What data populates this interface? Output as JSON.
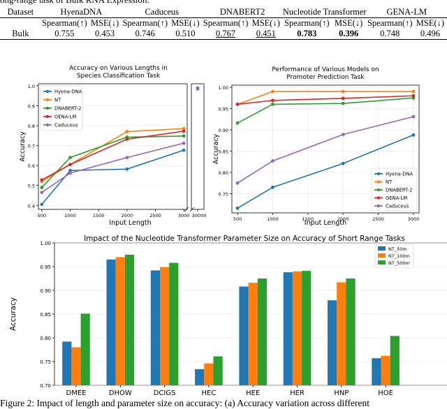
{
  "top_caption": "ong-range task of Bulk RNA Expression.",
  "table": {
    "dataset_header": "Dataset",
    "models": [
      "HyenaDNA",
      "Caduceus",
      "DNABERT2",
      "Nucleotide Transformer",
      "GENA-LM"
    ],
    "metric_spearman": "Spearman(↑)",
    "metric_mse": "MSE(↓)",
    "row_label": "Bulk",
    "values": [
      "0.755",
      "0.453",
      "0.746",
      "0.510",
      "0.767",
      "0.451",
      "0.783",
      "0.396",
      "0.748",
      "0.496"
    ]
  },
  "chart_data": [
    {
      "type": "line",
      "title": "Accuracy on Various Lengths in\nSpecies Classification Task",
      "title_line1": "Accuracy on Various Lengths in",
      "title_line2": "Species Classification Task",
      "xlabel": "Input Length",
      "ylabel": "Accuracy",
      "x_ticks": [
        "500",
        "1000",
        "1500",
        "2000",
        "2500",
        "3000"
      ],
      "x_break_tick": "30000",
      "y_ticks": [
        "0.4",
        "0.5",
        "0.6",
        "0.7",
        "0.8",
        "0.9",
        "1.0"
      ],
      "ylim": [
        0.38,
        1.01
      ],
      "x": [
        500,
        1000,
        2000,
        3000
      ],
      "legend": "top-left",
      "series": [
        {
          "name": "Hyena-DNA",
          "color": "#1f77b4",
          "values": [
            0.405,
            0.575,
            0.582,
            0.677
          ],
          "extra": 0.988
        },
        {
          "name": "NT",
          "color": "#ff7f0e",
          "values": [
            0.52,
            0.605,
            0.77,
            0.785
          ]
        },
        {
          "name": "DNABERT-2",
          "color": "#2ca02c",
          "values": [
            0.49,
            0.64,
            0.742,
            0.748
          ]
        },
        {
          "name": "GENA-LM",
          "color": "#d62728",
          "values": [
            0.528,
            0.605,
            0.732,
            0.772
          ]
        },
        {
          "name": "Caduceus",
          "color": "#9467bd",
          "values": [
            0.465,
            0.562,
            0.64,
            0.712
          ],
          "extra": 0.984
        }
      ]
    },
    {
      "type": "line",
      "title": "Performance of Various Models on\nPromoter Prediction Task",
      "title_line1": "Performance of Various Models on",
      "title_line2": "Promoter Prediction Task",
      "xlabel": "Input Length",
      "ylabel": "Accuracy",
      "x_ticks": [
        "500",
        "1000",
        "1500",
        "2000",
        "2500",
        "3000"
      ],
      "y_ticks": [
        "0.75",
        "0.80",
        "0.85",
        "0.90",
        "0.95",
        "1.00"
      ],
      "ylim": [
        0.705,
        1.005
      ],
      "x": [
        500,
        1000,
        2000,
        3000
      ],
      "legend": "bottom-right",
      "series": [
        {
          "name": "Hyena-DNA",
          "color": "#1f77b4",
          "values": [
            0.716,
            0.765,
            0.821,
            0.888
          ]
        },
        {
          "name": "NT",
          "color": "#ff7f0e",
          "values": [
            0.96,
            0.99,
            0.99,
            0.99
          ]
        },
        {
          "name": "DNABERT-2",
          "color": "#2ca02c",
          "values": [
            0.916,
            0.96,
            0.962,
            0.975
          ]
        },
        {
          "name": "GENA-LM",
          "color": "#d62728",
          "values": [
            0.96,
            0.969,
            0.974,
            0.98
          ]
        },
        {
          "name": "Caduceus",
          "color": "#9467bd",
          "values": [
            0.775,
            0.827,
            0.889,
            0.931
          ]
        }
      ]
    },
    {
      "type": "bar",
      "title": "Impact of the Nucleotide Transformer Parameter Size on Accuracy of Short Range Tasks",
      "xlabel": "",
      "ylabel": "Accuracy",
      "categories": [
        "DMEE",
        "DHOW",
        "DCIGS",
        "HEC",
        "HEE",
        "HER",
        "HNP",
        "HOE"
      ],
      "y_ticks": [
        "0.70",
        "0.75",
        "0.80",
        "0.85",
        "0.90",
        "0.95",
        "1.00"
      ],
      "ylim": [
        0.7,
        1.0
      ],
      "legend": "top-right",
      "series": [
        {
          "name": "NT_50m",
          "color": "#1f77b4",
          "values": [
            0.792,
            0.965,
            0.942,
            0.734,
            0.908,
            0.938,
            0.879,
            0.757
          ]
        },
        {
          "name": "NT_100m",
          "color": "#ff7f0e",
          "values": [
            0.78,
            0.97,
            0.949,
            0.746,
            0.916,
            0.94,
            0.917,
            0.762
          ]
        },
        {
          "name": "NT_500m",
          "color": "#2ca02c",
          "values": [
            0.851,
            0.975,
            0.958,
            0.761,
            0.925,
            0.941,
            0.925,
            0.804
          ]
        }
      ]
    }
  ],
  "figure_caption": "Figure 2: Impact of length and parameter size on accuracy: (a) Accuracy variation across different"
}
